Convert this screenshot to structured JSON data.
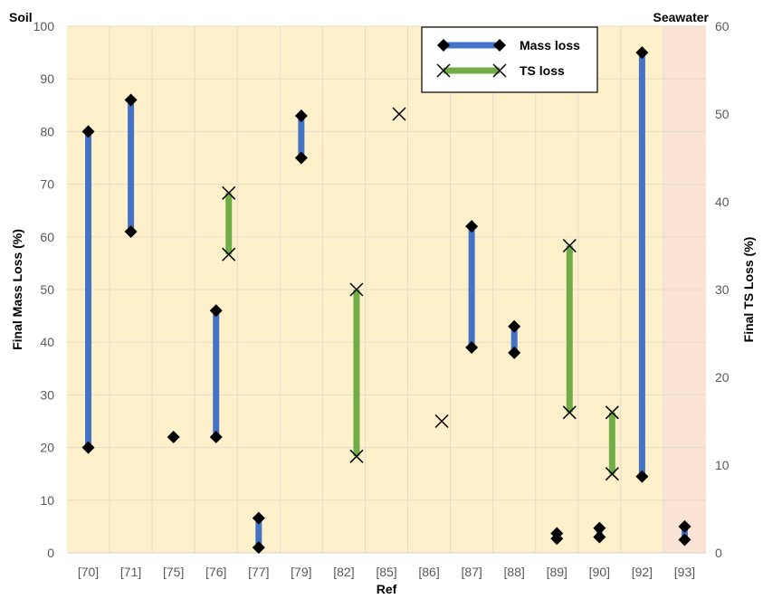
{
  "chart_data": {
    "type": "range-scatter",
    "xlabel": "Ref",
    "ylabel_left": "Final Mass Loss (%)",
    "ylabel_right": "Final TS Loss (%)",
    "ylim_left": [
      0,
      100
    ],
    "ylim_right": [
      0,
      60
    ],
    "yticks_left": [
      0,
      10,
      20,
      30,
      40,
      50,
      60,
      70,
      80,
      90,
      100
    ],
    "yticks_right": [
      0,
      10,
      20,
      30,
      40,
      50,
      60
    ],
    "categories": [
      "[70]",
      "[71]",
      "[75]",
      "[76]",
      "[77]",
      "[79]",
      "[82]",
      "[85]",
      "[86]",
      "[87]",
      "[88]",
      "[89]",
      "[90]",
      "[92]",
      "[93]"
    ],
    "regions": [
      {
        "label": "Soil",
        "categories": [
          "[70]",
          "[71]",
          "[75]",
          "[76]",
          "[77]",
          "[79]",
          "[82]",
          "[85]",
          "[86]",
          "[87]",
          "[88]",
          "[89]",
          "[90]",
          "[92]"
        ],
        "color": "#FFF0CC"
      },
      {
        "label": "Seawater",
        "categories": [
          "[93]"
        ],
        "color": "#FBE3D6"
      }
    ],
    "grid": true,
    "legend_position": "top-right",
    "series": [
      {
        "name": "Mass loss",
        "axis": "left",
        "color": "#4472C4",
        "marker": "diamond",
        "ranges": [
          {
            "category": "[70]",
            "min": 20,
            "max": 80
          },
          {
            "category": "[71]",
            "min": 61,
            "max": 86
          },
          {
            "category": "[75]",
            "min": 22,
            "max": 22
          },
          {
            "category": "[76]",
            "min": 22,
            "max": 46
          },
          {
            "category": "[77]",
            "min": 1,
            "max": 6.6
          },
          {
            "category": "[79]",
            "min": 75,
            "max": 83
          },
          {
            "category": "[87]",
            "min": 39,
            "max": 62
          },
          {
            "category": "[88]",
            "min": 38,
            "max": 43
          },
          {
            "category": "[89]",
            "min": 2.7,
            "max": 3.7
          },
          {
            "category": "[90]",
            "min": 3,
            "max": 4.7
          },
          {
            "category": "[92]",
            "min": 14.5,
            "max": 95
          },
          {
            "category": "[93]",
            "min": 2.5,
            "max": 5
          }
        ]
      },
      {
        "name": "TS loss",
        "axis": "right",
        "color": "#70AD47",
        "marker": "x",
        "ranges": [
          {
            "category": "[76]",
            "min": 34,
            "max": 41
          },
          {
            "category": "[82]",
            "min": 11,
            "max": 30
          },
          {
            "category": "[85]",
            "min": 50,
            "max": 50
          },
          {
            "category": "[86]",
            "min": 15,
            "max": 15
          },
          {
            "category": "[89]",
            "min": 16,
            "max": 35
          },
          {
            "category": "[90]",
            "min": 9,
            "max": 16
          }
        ]
      }
    ]
  }
}
